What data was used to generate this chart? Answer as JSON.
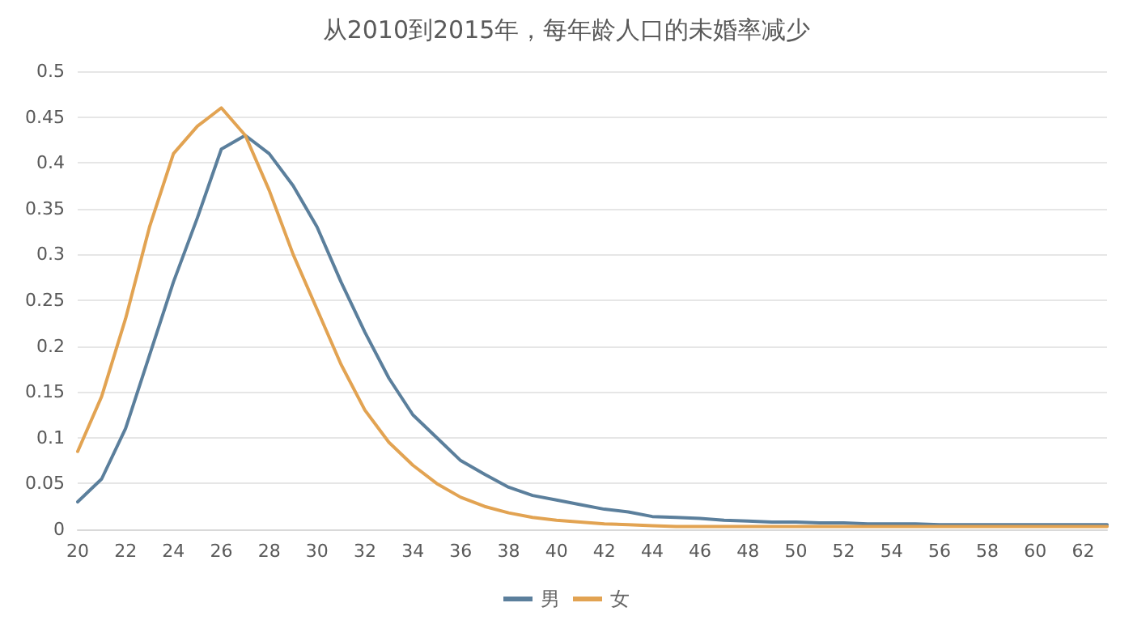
{
  "chart_data": {
    "type": "line",
    "title": "从2010到2015年，每年龄人口的未婚率减少",
    "categories": [
      "20",
      null,
      "22",
      null,
      "24",
      null,
      "26",
      null,
      "28",
      null,
      "30",
      null,
      "32",
      null,
      "34",
      null,
      "36",
      null,
      "38",
      null,
      "40",
      null,
      "42",
      null,
      "44",
      null,
      "46",
      null,
      "48",
      null,
      "50",
      null,
      "52",
      null,
      "54",
      null,
      "56",
      null,
      "58",
      null,
      "60",
      null,
      "62",
      null
    ],
    "series": [
      {
        "name": "男",
        "color": "#5b7f9c",
        "values": [
          0.03,
          0.055,
          0.11,
          0.19,
          0.27,
          0.34,
          0.415,
          0.43,
          0.41,
          0.375,
          0.33,
          0.27,
          0.215,
          0.165,
          0.125,
          0.1,
          0.075,
          0.06,
          0.046,
          0.037,
          0.032,
          0.027,
          0.022,
          0.019,
          0.014,
          0.013,
          0.012,
          0.01,
          0.009,
          0.008,
          0.008,
          0.007,
          0.007,
          0.006,
          0.006,
          0.006,
          0.005,
          0.005,
          0.005,
          0.005,
          0.005,
          0.005,
          0.005,
          0.005
        ]
      },
      {
        "name": "女",
        "color": "#e2a352",
        "values": [
          0.085,
          0.145,
          0.23,
          0.33,
          0.41,
          0.44,
          0.46,
          0.43,
          0.37,
          0.3,
          0.24,
          0.18,
          0.13,
          0.095,
          0.07,
          0.05,
          0.035,
          0.025,
          0.018,
          0.013,
          0.01,
          0.008,
          0.006,
          0.005,
          0.004,
          0.003,
          0.003,
          0.003,
          0.003,
          0.003,
          0.003,
          0.003,
          0.003,
          0.003,
          0.003,
          0.003,
          0.003,
          0.003,
          0.003,
          0.003,
          0.003,
          0.003,
          0.003,
          0.003
        ]
      }
    ],
    "ylim": [
      0,
      0.5
    ],
    "yticks": [
      0,
      0.05,
      0.1,
      0.15,
      0.2,
      0.25,
      0.3,
      0.35,
      0.4,
      0.45,
      0.5
    ],
    "grid": "y",
    "legend": "bottom",
    "marker": "none",
    "line_style": "solid"
  }
}
